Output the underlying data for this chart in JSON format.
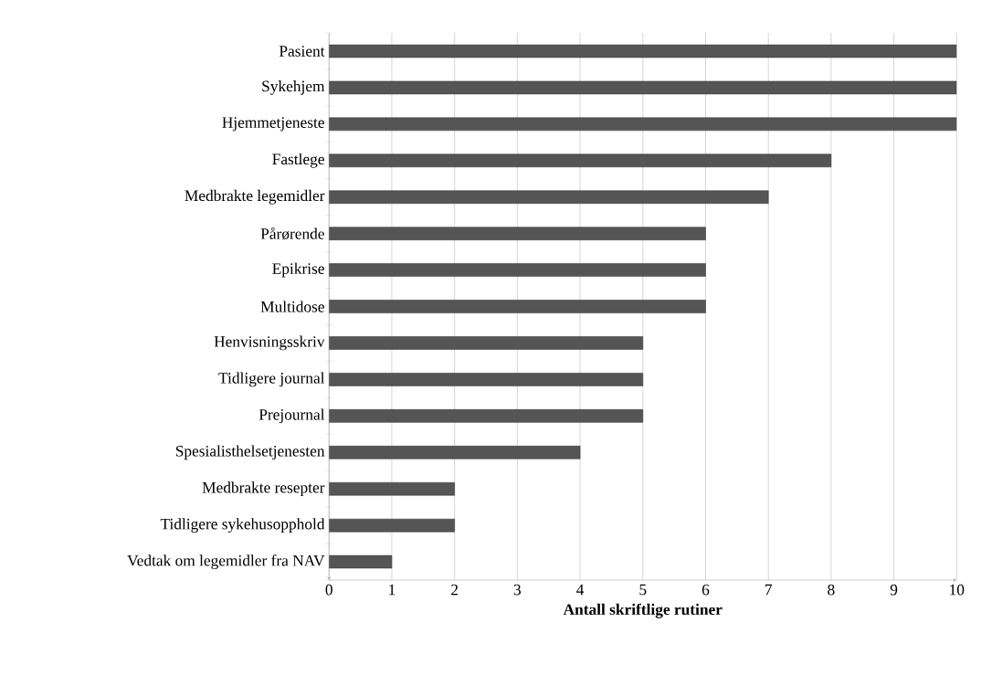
{
  "chart_data": {
    "type": "bar",
    "orientation": "horizontal",
    "xlabel": "Antall skriftlige rutiner",
    "categories": [
      "Pasient",
      "Sykehjem",
      "Hjemmetjeneste",
      "Fastlege",
      "Medbrakte legemidler",
      "Pårørende",
      "Epikrise",
      "Multidose",
      "Henvisningsskriv",
      "Tidligere journal",
      "Prejournal",
      "Spesialisthelsetjenesten",
      "Medbrakte resepter",
      "Tidligere sykehusopphold",
      "Vedtak om legemidler fra NAV"
    ],
    "values": [
      10,
      10,
      10,
      8,
      7,
      6,
      6,
      6,
      5,
      5,
      5,
      4,
      2,
      2,
      1
    ],
    "color": "#555555",
    "xlim": [
      0,
      10
    ],
    "xticks": [
      0,
      1,
      2,
      3,
      4,
      5,
      6,
      7,
      8,
      9,
      10
    ],
    "grid": "x"
  }
}
